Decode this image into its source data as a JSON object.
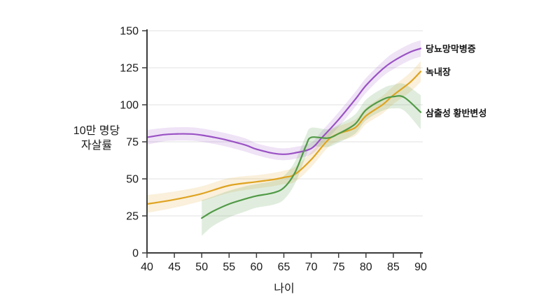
{
  "chart_data": {
    "type": "line",
    "title": "",
    "xlabel": "나이",
    "ylabel": "10만 명당 자살률",
    "ylabel_lines": [
      "10만 명당",
      "자살률"
    ],
    "xlim": [
      40,
      90
    ],
    "ylim": [
      0,
      150
    ],
    "xticks": [
      40,
      45,
      50,
      55,
      60,
      65,
      70,
      75,
      80,
      85,
      90
    ],
    "yticks": [
      0,
      25,
      50,
      75,
      100,
      125,
      150
    ],
    "grid": true,
    "legend_position": "labels-at-line-ends-right",
    "background_color": "#ffffff",
    "axis_color": "#3c3c3c",
    "grid_color": "#e2e2e2",
    "text_color": "#1a1a1a",
    "series": [
      {
        "name": "당뇨망막병증",
        "color": "#9a52c4",
        "band_opacity": 0.16,
        "x": [
          40,
          43,
          45,
          48,
          50,
          53,
          55,
          58,
          60,
          63,
          65,
          67,
          70,
          72,
          75,
          78,
          80,
          83,
          85,
          88,
          90
        ],
        "y": [
          78,
          79.8,
          80.3,
          80.3,
          79.5,
          77.5,
          75.8,
          72.8,
          70,
          67.3,
          66.6,
          67.5,
          70.5,
          78,
          90,
          103.5,
          113,
          124,
          129.5,
          135.5,
          138
        ],
        "band_halfwidth": [
          5,
          4.5,
          4.5,
          4.5,
          4.5,
          4.5,
          4.5,
          4.5,
          4,
          4,
          4,
          4,
          4,
          4.5,
          5,
          5,
          5,
          5,
          5.5,
          5.5,
          5.5
        ]
      },
      {
        "name": "녹내장",
        "color": "#dfa321",
        "band_opacity": 0.16,
        "x": [
          40,
          45,
          50,
          55,
          60,
          63,
          65,
          67,
          70,
          73,
          75,
          78,
          80,
          83,
          85,
          88,
          90
        ],
        "y": [
          33,
          36,
          40,
          45.5,
          48,
          49.5,
          51,
          53,
          63,
          76,
          80.5,
          84.5,
          92.5,
          100,
          106.5,
          115,
          122.5
        ],
        "band_halfwidth": [
          6,
          5.5,
          5,
          5,
          4.5,
          4.5,
          4.5,
          5,
          5,
          5,
          5,
          5.5,
          5.5,
          6,
          6,
          6.5,
          7
        ]
      },
      {
        "name": "삼출성 황반변성",
        "color": "#519a47",
        "band_opacity": 0.18,
        "x": [
          50,
          52,
          55,
          58,
          60,
          63,
          65,
          67,
          69,
          70,
          73,
          75,
          78,
          80,
          83,
          85,
          87,
          90
        ],
        "y": [
          23.5,
          28,
          33,
          36.5,
          38.5,
          40.5,
          44,
          54,
          72,
          78,
          77.5,
          80.5,
          87,
          96.5,
          103.5,
          105.5,
          105,
          95
        ],
        "band_halfwidth": [
          12,
          10,
          9,
          8.5,
          8,
          8,
          8,
          7.5,
          7,
          6.5,
          6,
          6,
          6.5,
          7,
          7.5,
          8,
          9,
          11.5
        ]
      }
    ]
  }
}
